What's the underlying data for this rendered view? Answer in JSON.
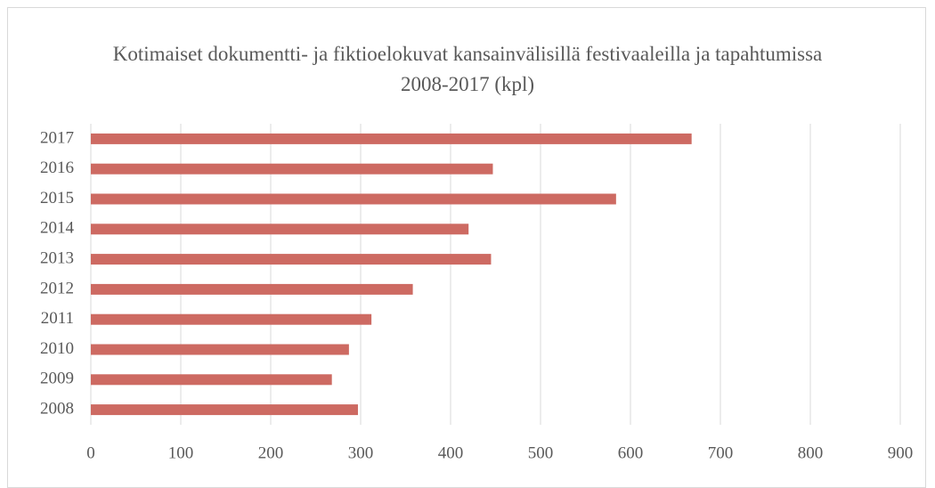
{
  "chart_data": {
    "type": "bar",
    "orientation": "horizontal",
    "title": "Kotimaiset dokumentti- ja fiktioelokuvat kansainvälisillä festivaaleilla ja tapahtumissa 2008-2017 (kpl)",
    "categories": [
      "2008",
      "2009",
      "2010",
      "2011",
      "2012",
      "2013",
      "2014",
      "2015",
      "2016",
      "2017"
    ],
    "values": [
      297,
      268,
      287,
      312,
      358,
      445,
      420,
      584,
      447,
      668
    ],
    "color": "#cd6a62",
    "xlim": [
      0,
      900
    ],
    "xticks": [
      0,
      100,
      200,
      300,
      400,
      500,
      600,
      700,
      800,
      900
    ],
    "grid": true
  }
}
